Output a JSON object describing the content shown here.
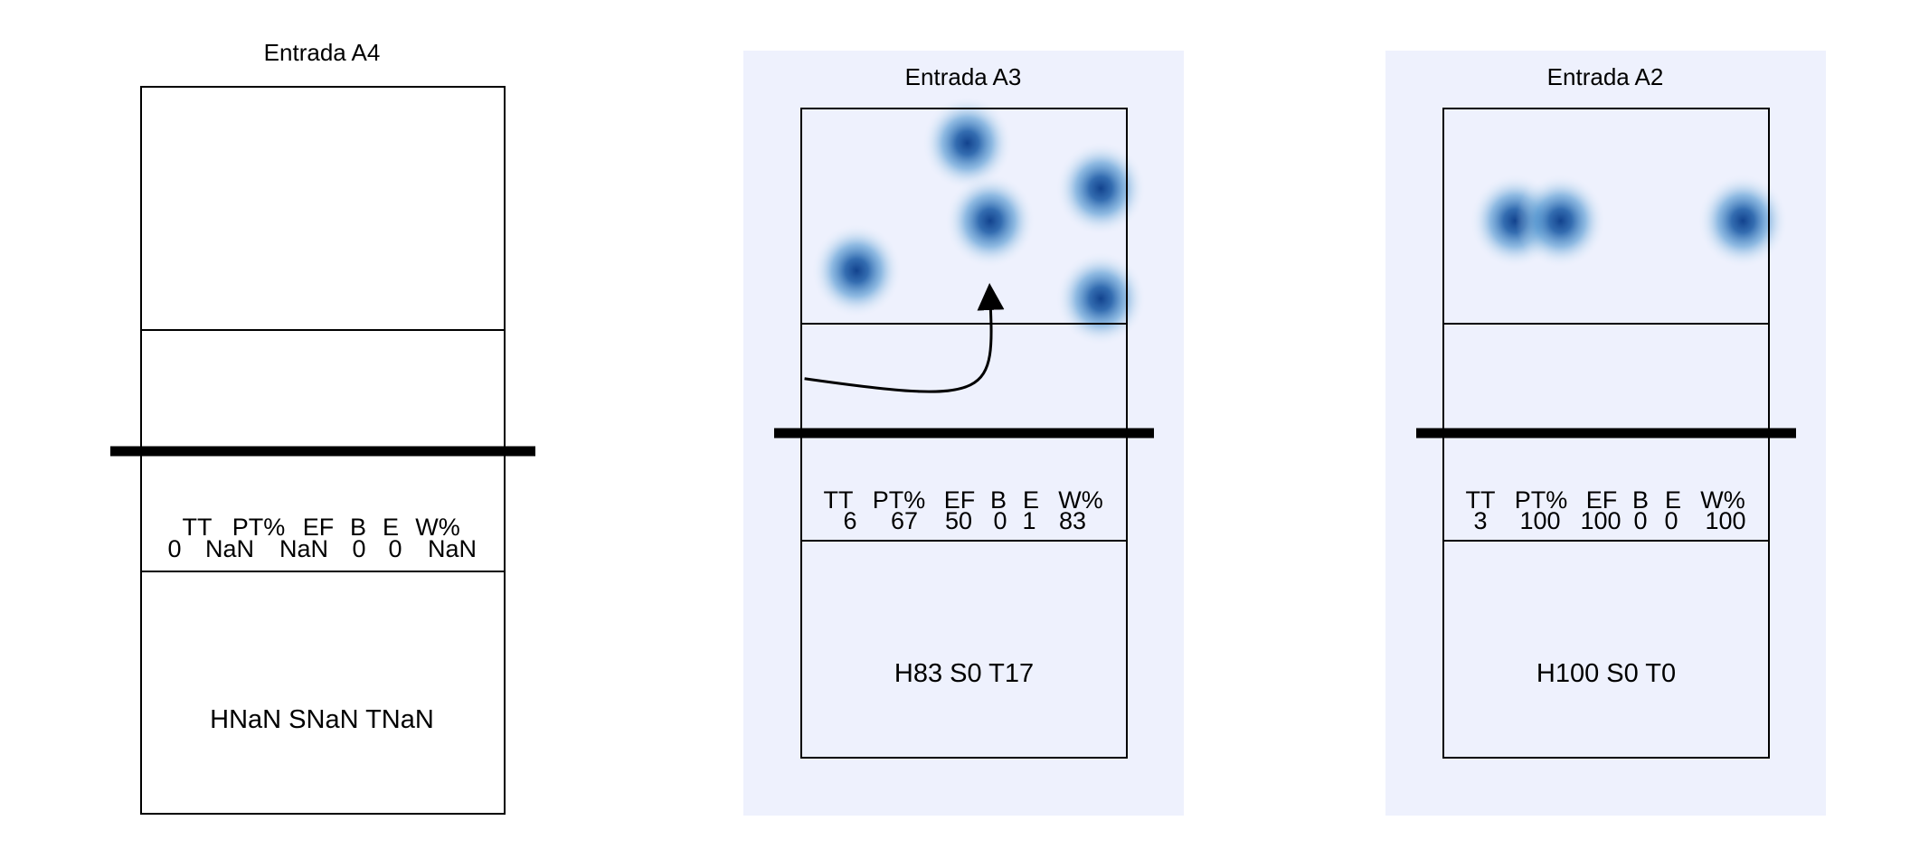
{
  "colors": {
    "panel_bg_active": "#eef1fd",
    "heat_core": "#1f5ea8",
    "heat_mid": "#5aa0d6",
    "line": "#000000"
  },
  "chart_data": [
    {
      "type": "heatmap",
      "title": "Entrada A4",
      "highlighted": false,
      "stats": {
        "headers": [
          "TT",
          "PT%",
          "EF",
          "B",
          "E",
          "W%"
        ],
        "values": [
          "0",
          "NaN",
          "NaN",
          "0",
          "0",
          "NaN"
        ]
      },
      "summary": "HNaN SNaN TNaN",
      "hotspots": [],
      "arrow": null
    },
    {
      "type": "heatmap",
      "title": "Entrada A3",
      "highlighted": true,
      "stats": {
        "headers": [
          "TT",
          "PT%",
          "EF",
          "B",
          "E",
          "W%"
        ],
        "values": [
          "6",
          "67",
          "50",
          "0",
          "1",
          "83"
        ]
      },
      "summary": "H83 S0 T17",
      "hotspots": [
        {
          "x": 0.17,
          "y": 0.25,
          "weight": 1
        },
        {
          "x": 0.51,
          "y": 0.84,
          "weight": 1
        },
        {
          "x": 0.58,
          "y": 0.48,
          "weight": 1
        },
        {
          "x": 0.92,
          "y": 0.63,
          "weight": 1
        },
        {
          "x": 0.92,
          "y": 0.12,
          "weight": 1
        }
      ],
      "arrow": {
        "from": {
          "x": 0.01,
          "y": -0.25
        },
        "to": {
          "x": 0.58,
          "y": 0.13
        }
      }
    },
    {
      "type": "heatmap",
      "title": "Entrada A2",
      "highlighted": true,
      "stats": {
        "headers": [
          "TT",
          "PT%",
          "EF",
          "B",
          "E",
          "W%"
        ],
        "values": [
          "3",
          "100",
          "100",
          "0",
          "0",
          "100"
        ]
      },
      "summary": "H100 S0 T0",
      "hotspots": [
        {
          "x": 0.22,
          "y": 0.48,
          "weight": 1
        },
        {
          "x": 0.36,
          "y": 0.48,
          "weight": 1
        },
        {
          "x": 0.92,
          "y": 0.48,
          "weight": 1
        }
      ],
      "arrow": null
    }
  ]
}
